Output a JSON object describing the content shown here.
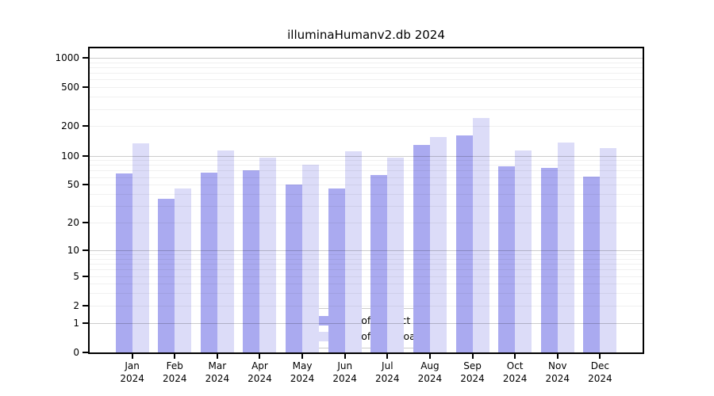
{
  "chart_data": {
    "type": "bar",
    "title": "illuminaHumanv2.db 2024",
    "categories": [
      "Jan",
      "Feb",
      "Mar",
      "Apr",
      "May",
      "Jun",
      "Jul",
      "Aug",
      "Sep",
      "Oct",
      "Nov",
      "Dec"
    ],
    "category_year": "2024",
    "series": [
      {
        "name": "Nb of distinct IPs",
        "color": "#aaaaf0",
        "values": [
          65,
          36,
          67,
          71,
          50,
          46,
          63,
          129,
          160,
          78,
          75,
          61
        ]
      },
      {
        "name": "Nb of downloads",
        "color": "#dcdcf8",
        "values": [
          133,
          46,
          113,
          95,
          80,
          111,
          95,
          155,
          245,
          114,
          135,
          120
        ]
      }
    ],
    "xlabel": "",
    "ylabel": "",
    "yscale": "log1p",
    "yticks": [
      0,
      1,
      2,
      5,
      10,
      20,
      50,
      100,
      200,
      500,
      1000
    ],
    "ylim": [
      0,
      1250
    ],
    "grid": "horizontal, major on powers of 10, faint log minors",
    "legend_position": "inside bottom-center",
    "colors": {
      "axis": "#000000",
      "major_grid": "#cccccc",
      "minor_grid": "#ededed",
      "background": "#ffffff",
      "text": "#000000"
    }
  }
}
